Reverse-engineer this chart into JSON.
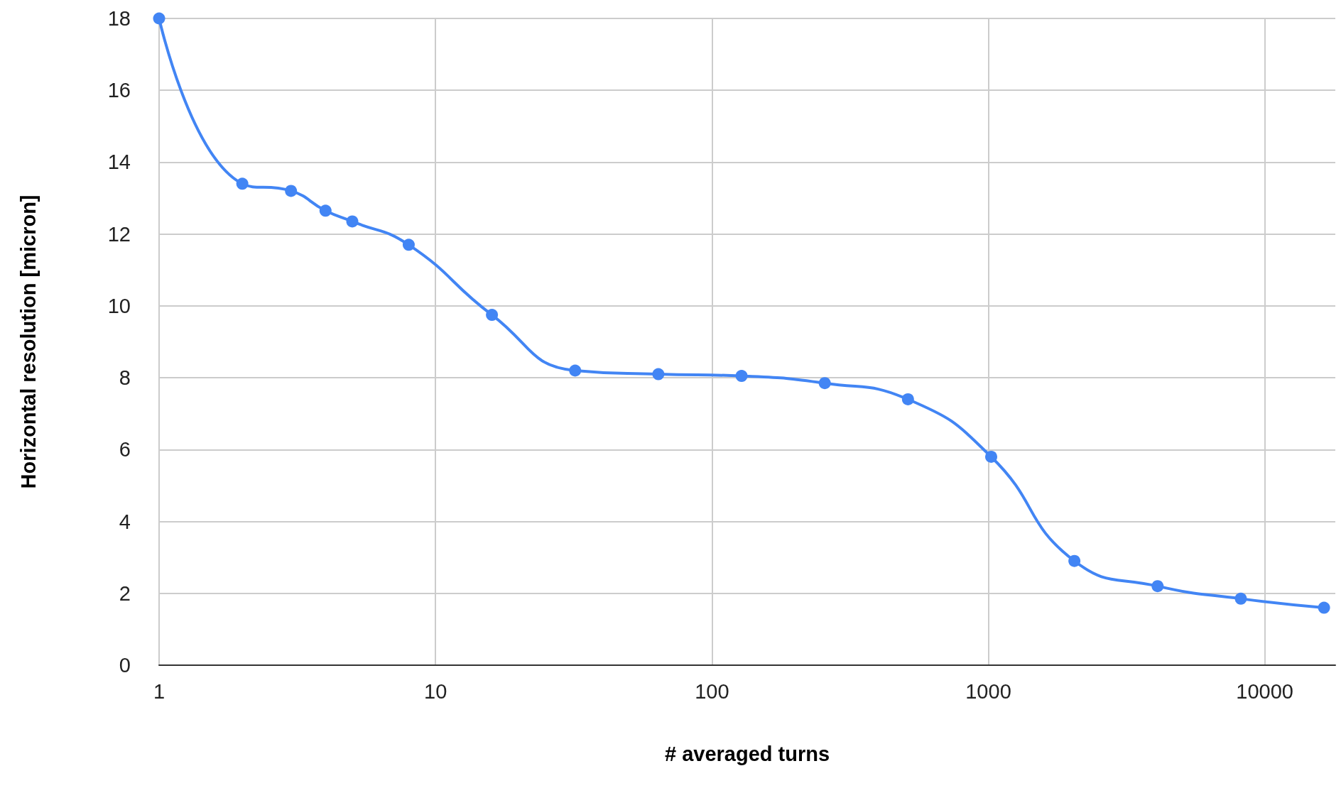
{
  "chart_data": {
    "type": "line",
    "xlabel": "# averaged turns",
    "ylabel": "Horizontal resolution [micron]",
    "x": [
      1,
      2,
      3,
      4,
      5,
      8,
      16,
      32,
      64,
      128,
      256,
      512,
      1024,
      2048,
      4096,
      8192,
      16384
    ],
    "series": [
      {
        "color": "#4285f4",
        "values": [
          18,
          13.4,
          13.2,
          12.65,
          12.35,
          11.7,
          9.75,
          8.2,
          8.1,
          8.05,
          7.85,
          7.4,
          5.8,
          2.9,
          2.2,
          1.85,
          1.6
        ]
      }
    ],
    "xlim": [
      1,
      18000
    ],
    "xticks": [
      1,
      10,
      100,
      1000,
      10000
    ],
    "ylim": [
      0,
      18
    ],
    "yticks": [
      0,
      2,
      4,
      6,
      8,
      10,
      12,
      14,
      16,
      18
    ],
    "log": "x",
    "grid": true,
    "marker": "circle",
    "line_style": "solid"
  }
}
